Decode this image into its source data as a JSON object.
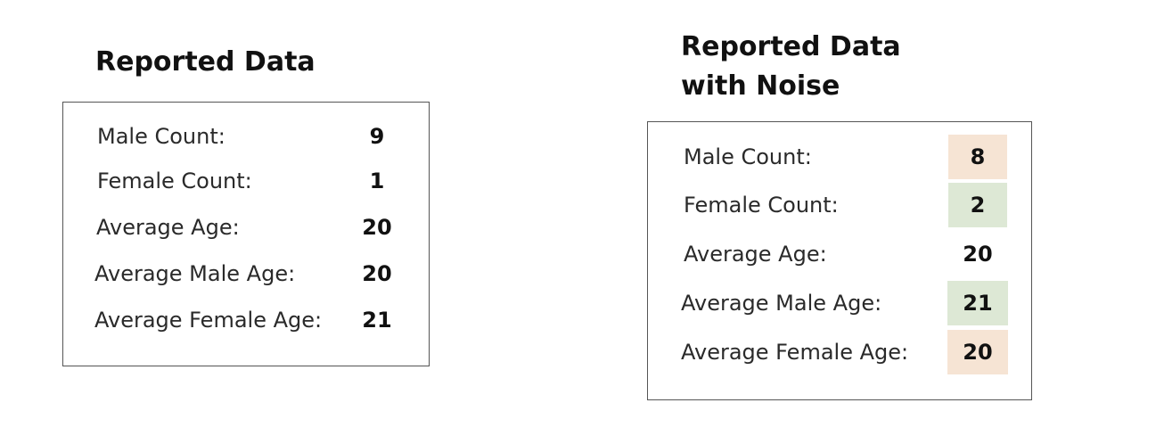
{
  "panels": [
    {
      "title": "Reported Data",
      "rows": [
        {
          "label": "Male Count:",
          "value": "9"
        },
        {
          "label": "Female Count:",
          "value": "1"
        },
        {
          "label": "Average Age:",
          "value": "20"
        },
        {
          "label": "Average Male Age:",
          "value": "20"
        },
        {
          "label": "Average Female Age:",
          "value": "21"
        }
      ]
    },
    {
      "title": "Reported Data\nwith Noise",
      "rows": [
        {
          "label": "Male Count:",
          "value": "8",
          "highlight": "decrease"
        },
        {
          "label": "Female Count:",
          "value": "2",
          "highlight": "increase"
        },
        {
          "label": "Average Age:",
          "value": "20",
          "highlight": "none"
        },
        {
          "label": "Average Male Age:",
          "value": "21",
          "highlight": "increase"
        },
        {
          "label": "Average Female Age:",
          "value": "20",
          "highlight": "decrease"
        }
      ]
    }
  ],
  "colors": {
    "increase": "#dde8d5",
    "decrease": "#f6e4d4",
    "none": "transparent",
    "border": "#555555"
  }
}
